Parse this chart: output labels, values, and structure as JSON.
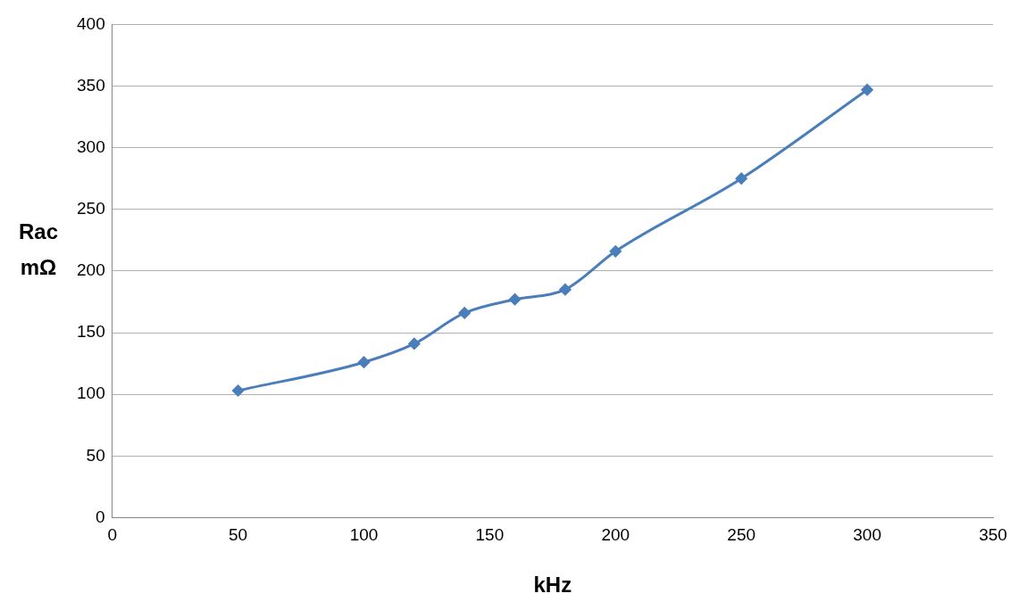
{
  "chart_data": {
    "type": "line",
    "xlabel": "kHz",
    "ylabel": "Rac\nmΩ",
    "x": [
      50,
      100,
      120,
      140,
      160,
      180,
      200,
      250,
      300
    ],
    "series": [
      {
        "color": "#4a7ebb",
        "values": [
          103,
          126,
          141,
          166,
          177,
          185,
          216,
          275,
          347
        ]
      }
    ],
    "xlim": [
      0,
      350
    ],
    "xticks": [
      0,
      50,
      100,
      150,
      200,
      250,
      300,
      350
    ],
    "ylim": [
      0,
      400
    ],
    "yticks": [
      0,
      50,
      100,
      150,
      200,
      250,
      300,
      350,
      400
    ],
    "grid": "y",
    "legend": false,
    "marker": "diamond",
    "line_style": "solid"
  }
}
